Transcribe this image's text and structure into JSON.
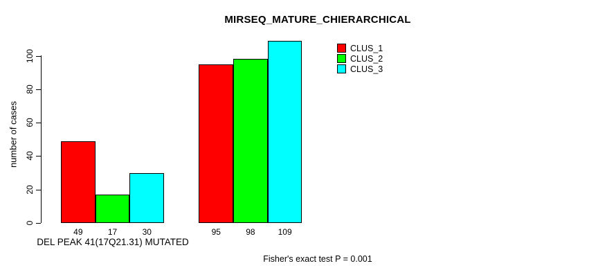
{
  "chart_data": {
    "type": "bar",
    "title": "MIRSEQ_MATURE_CHIERARCHICAL",
    "ylabel": "number of cases",
    "xlabel": "DEL PEAK 41(17Q21.31) MUTATED",
    "footnote": "Fisher's exact test P = 0.001",
    "ylim": [
      0,
      109
    ],
    "yticks": [
      0,
      20,
      40,
      60,
      80,
      100
    ],
    "grid": false,
    "categories": [
      "DEL PEAK 41(17Q21.31) MUTATED",
      ""
    ],
    "series": [
      {
        "name": "CLUS_1",
        "color": "#ff0000",
        "values": [
          49,
          95
        ]
      },
      {
        "name": "CLUS_2",
        "color": "#00ff00",
        "values": [
          17,
          98
        ]
      },
      {
        "name": "CLUS_3",
        "color": "#00ffff",
        "values": [
          30,
          109
        ]
      }
    ],
    "bar_value_labels": [
      [
        "49",
        "17",
        "30"
      ],
      [
        "95",
        "98",
        "109"
      ]
    ],
    "legend": {
      "position": "top-right",
      "entries": [
        {
          "label": "CLUS_1",
          "color": "#ff0000"
        },
        {
          "label": "CLUS_2",
          "color": "#00ff00"
        },
        {
          "label": "CLUS_3",
          "color": "#00ffff"
        }
      ]
    },
    "axis_color": "#000000",
    "background_color": "#ffffff"
  }
}
